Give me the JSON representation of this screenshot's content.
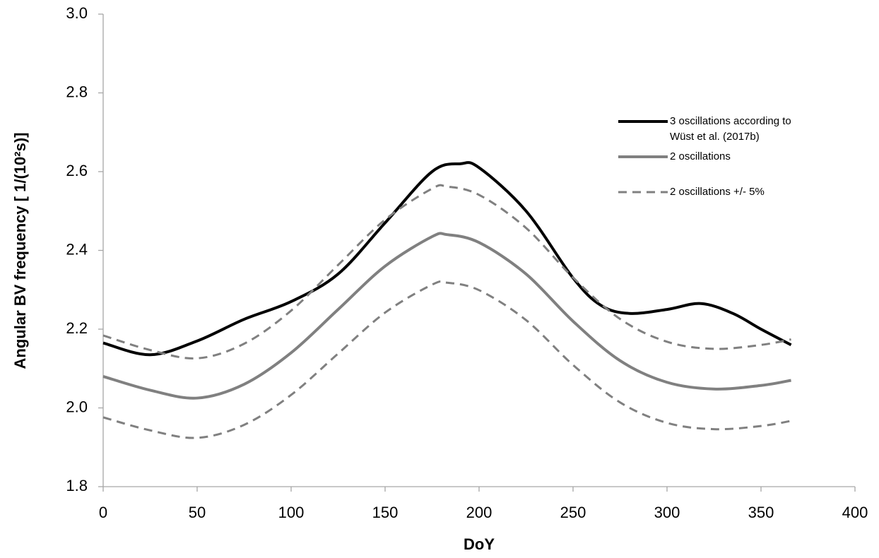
{
  "chart_data": {
    "type": "line",
    "x_label": "DoY",
    "y_label": "Angular BV frequency [ 1/(10²s)]",
    "xlim": [
      0,
      400
    ],
    "xticks": [
      0,
      50,
      100,
      150,
      200,
      250,
      300,
      350,
      400
    ],
    "ylim": [
      1.8,
      3.0
    ],
    "yticks": [
      1.8,
      {
        "value": 2,
        "label": "2.0"
      },
      2.2,
      2.4,
      2.6,
      2.8,
      {
        "value": 3,
        "label": "3.0"
      }
    ],
    "grid": false,
    "series": [
      {
        "name": "3 oscillations according to Wüst et al. (2017b)",
        "color": "#000000",
        "style": "solid",
        "x": [
          0,
          25,
          50,
          75,
          100,
          125,
          150,
          175,
          190,
          200,
          225,
          250,
          265,
          280,
          300,
          318,
          335,
          350,
          366
        ],
        "values": [
          2.165,
          2.135,
          2.17,
          2.225,
          2.27,
          2.34,
          2.47,
          2.6,
          2.62,
          2.61,
          2.5,
          2.33,
          2.26,
          2.24,
          2.25,
          2.265,
          2.24,
          2.2,
          2.16
        ]
      },
      {
        "name": "2 oscillations",
        "color": "#808080",
        "style": "solid",
        "x": [
          0,
          25,
          50,
          75,
          100,
          125,
          150,
          175,
          183,
          200,
          225,
          250,
          275,
          300,
          325,
          350,
          366
        ],
        "values": [
          2.08,
          2.045,
          2.025,
          2.06,
          2.14,
          2.25,
          2.36,
          2.435,
          2.44,
          2.42,
          2.34,
          2.22,
          2.12,
          2.065,
          2.048,
          2.057,
          2.07
        ]
      },
      {
        "name": "2 oscillations +/- 5%",
        "color": "#808080",
        "style": "dashed",
        "x": [
          0,
          25,
          50,
          75,
          100,
          125,
          150,
          175,
          183,
          200,
          225,
          250,
          275,
          300,
          325,
          350,
          366
        ],
        "values": [
          2.184,
          2.147,
          2.126,
          2.163,
          2.247,
          2.363,
          2.478,
          2.557,
          2.562,
          2.541,
          2.457,
          2.331,
          2.226,
          2.168,
          2.15,
          2.16,
          2.174
        ],
        "lower_values": [
          1.976,
          1.943,
          1.924,
          1.957,
          2.033,
          2.138,
          2.242,
          2.313,
          2.318,
          2.299,
          2.223,
          2.109,
          2.014,
          1.962,
          1.946,
          1.954,
          1.967
        ]
      }
    ]
  }
}
